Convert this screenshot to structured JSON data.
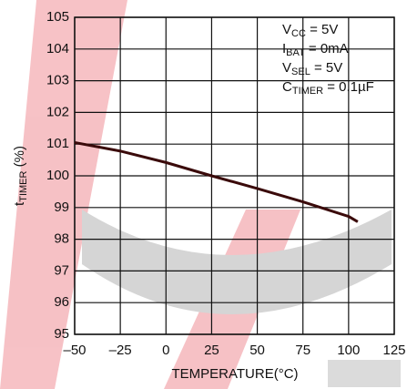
{
  "chart_data": {
    "type": "line",
    "x_label": "TEMPERATURE(°C)",
    "y_label": {
      "main": "t",
      "sub": "TIMER",
      "rest": " (%)"
    },
    "annotations": [
      {
        "main": "V",
        "sub": "CC",
        "rest": " = 5V"
      },
      {
        "main": "I",
        "sub": "BAT",
        "rest": " = 0mA"
      },
      {
        "main": "V",
        "sub": "SEL",
        "rest": " = 5V"
      },
      {
        "main": "C",
        "sub": "TIMER",
        "rest": " = 0.1µF"
      }
    ],
    "x": [
      -50,
      -25,
      0,
      25,
      50,
      75,
      100,
      105
    ],
    "series": [
      {
        "color": "#3a0a0a",
        "values": [
          101.05,
          100.78,
          100.42,
          100.0,
          99.6,
          99.18,
          98.72,
          98.55
        ]
      }
    ],
    "xlim": [
      -50,
      125
    ],
    "ylim": [
      95,
      105
    ],
    "xticks": [
      {
        "value": -50,
        "label": "–50"
      },
      {
        "value": -25,
        "label": "–25"
      },
      0,
      25,
      50,
      75,
      100,
      125
    ],
    "yticks": [
      95,
      96,
      97,
      98,
      99,
      100,
      101,
      102,
      103,
      104,
      105
    ],
    "grid": true
  }
}
